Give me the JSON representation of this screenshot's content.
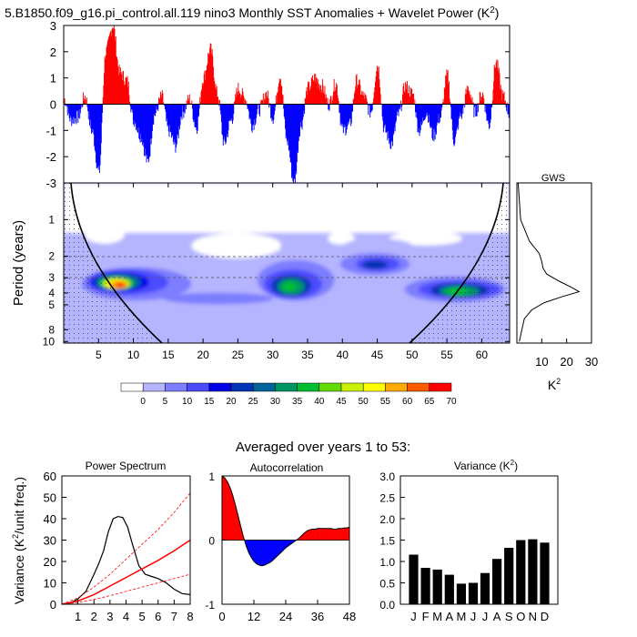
{
  "title_prefix": "5.B1850.f09_g16.pi_control.all.119 nino3 Monthly SST Anomalies + Wavelet Power (K",
  "title_sup": "2",
  "title_suffix": ")",
  "chart_data": [
    {
      "id": "anomaly",
      "type": "area",
      "xlim": [
        0,
        64
      ],
      "ylim": [
        -3,
        3
      ],
      "yticks": [
        "3",
        "2",
        "1",
        "0",
        "-1",
        "-2",
        "-3"
      ],
      "positive_color": "#ff0000",
      "negative_color": "#0000ff",
      "anchors_x": [
        0,
        1,
        2,
        3,
        4,
        5,
        6,
        7,
        8,
        9,
        10,
        11,
        12,
        13,
        14,
        15,
        16,
        17,
        18,
        19,
        20,
        21,
        22,
        23,
        24,
        25,
        26,
        27,
        28,
        29,
        30,
        31,
        32,
        33,
        34,
        35,
        36,
        37,
        38,
        39,
        40,
        41,
        42,
        43,
        44,
        45,
        46,
        47,
        48,
        49,
        50,
        51,
        52,
        53,
        54,
        55,
        56,
        57,
        58,
        59,
        60,
        61,
        62,
        63,
        64
      ],
      "anchors_y": [
        0.2,
        -0.6,
        -0.5,
        0.3,
        -1.0,
        -2.6,
        2.0,
        3.0,
        1.2,
        0.9,
        -0.6,
        -1.2,
        -2.2,
        -0.4,
        0.3,
        -1.0,
        -1.6,
        -0.3,
        0.2,
        -0.9,
        1.0,
        2.1,
        0.4,
        -1.5,
        -0.6,
        0.6,
        0.2,
        -0.8,
        -0.2,
        0.4,
        -0.5,
        1.1,
        -1.4,
        -3.0,
        -0.8,
        0.6,
        1.0,
        0.7,
        0.0,
        0.8,
        -1.0,
        -0.8,
        0.9,
        0.3,
        -0.3,
        1.5,
        -1.0,
        -1.5,
        -0.4,
        0.7,
        0.4,
        -1.0,
        -0.3,
        -1.2,
        -0.5,
        1.1,
        -1.4,
        -0.4,
        0.6,
        -0.3,
        0.4,
        -0.8,
        1.6,
        0.3,
        -0.4
      ]
    },
    {
      "id": "wavelet",
      "type": "heatmap",
      "ylabel": "Period (years)",
      "xticks": [
        "5",
        "10",
        "15",
        "20",
        "25",
        "30",
        "35",
        "40",
        "45",
        "50",
        "55",
        "60"
      ],
      "yticks": [
        "1",
        "2",
        "3",
        "4",
        "5",
        "8",
        "10"
      ],
      "colorbar_labels": [
        "0",
        "5",
        "10",
        "15",
        "20",
        "25",
        "30",
        "35",
        "40",
        "45",
        "50",
        "55",
        "60",
        "65",
        "70"
      ],
      "colorbar_colors": [
        "#ffffff",
        "#b4b4ff",
        "#7d7dff",
        "#4b4bff",
        "#0000e6",
        "#0032b4",
        "#00649b",
        "#009664",
        "#00be32",
        "#64dc00",
        "#c8f000",
        "#ffff00",
        "#ffaa00",
        "#ff5a00",
        "#ff0000"
      ],
      "notes": "colored wavelet power with cone of influence and stippled significance region"
    },
    {
      "id": "gws",
      "type": "line",
      "title": "GWS",
      "xlabel_base": "K",
      "xlabel_sup": "2",
      "xticks": [
        "10",
        "20",
        "30"
      ],
      "xlim": [
        0,
        30
      ],
      "curve": [
        {
          "period": 0.5,
          "power": 0.5
        },
        {
          "period": 1.0,
          "power": 1.5
        },
        {
          "period": 1.5,
          "power": 5
        },
        {
          "period": 1.9,
          "power": 9
        },
        {
          "period": 2.2,
          "power": 10
        },
        {
          "period": 2.5,
          "power": 10.5
        },
        {
          "period": 2.8,
          "power": 12
        },
        {
          "period": 3.2,
          "power": 17
        },
        {
          "period": 3.6,
          "power": 22
        },
        {
          "period": 3.9,
          "power": 25
        },
        {
          "period": 4.3,
          "power": 18
        },
        {
          "period": 4.8,
          "power": 11
        },
        {
          "period": 5.5,
          "power": 6
        },
        {
          "period": 6.5,
          "power": 3
        },
        {
          "period": 8.0,
          "power": 2
        },
        {
          "period": 10.0,
          "power": 1
        }
      ]
    },
    {
      "id": "power_spectrum",
      "type": "line",
      "title": "Power Spectrum",
      "ylabel_pre": "Variance (K",
      "ylabel_sup": "2",
      "ylabel_post": "/unit freq.)",
      "xlim": [
        0,
        8
      ],
      "ylim": [
        0,
        60
      ],
      "xticks": [
        "1",
        "2",
        "3",
        "4",
        "5",
        "6",
        "7",
        "8"
      ],
      "yticks": [
        "0",
        "10",
        "20",
        "30",
        "40",
        "50",
        "60"
      ],
      "series": [
        {
          "role": "spectrum",
          "color": "#000000",
          "x": [
            0,
            0.5,
            1.0,
            1.5,
            2.0,
            2.3,
            2.6,
            2.9,
            3.2,
            3.5,
            3.8,
            4.1,
            4.4,
            4.8,
            5.2,
            5.6,
            6.0,
            6.5,
            7.0,
            7.5,
            8.0
          ],
          "y": [
            0,
            0.5,
            2.5,
            6,
            14,
            19,
            25,
            34,
            40,
            41,
            40.5,
            36,
            28,
            18,
            14,
            13,
            12,
            10,
            7,
            5,
            4.5
          ]
        },
        {
          "role": "red-noise",
          "color": "#ff0000",
          "x": [
            0,
            1,
            2,
            3,
            4,
            5,
            6,
            7,
            8
          ],
          "y": [
            0,
            1.5,
            4.5,
            8.5,
            12.5,
            16.5,
            20.5,
            25,
            30
          ]
        },
        {
          "role": "upper-ci",
          "color": "#ff0000",
          "dashed": true,
          "x": [
            0,
            1,
            2,
            3,
            4,
            5,
            6,
            7,
            8
          ],
          "y": [
            0,
            3,
            8,
            14,
            21,
            28,
            35,
            43,
            52
          ]
        },
        {
          "role": "lower-ci",
          "color": "#ff0000",
          "dashed": true,
          "x": [
            0,
            1,
            2,
            3,
            4,
            5,
            6,
            7,
            8
          ],
          "y": [
            0,
            0.8,
            2.2,
            4,
            6,
            8,
            10,
            12,
            14
          ]
        }
      ]
    },
    {
      "id": "autocorrelation",
      "type": "area",
      "title": "Autocorrelation",
      "xlim": [
        0,
        48
      ],
      "ylim": [
        -1,
        1
      ],
      "xticks": [
        "0",
        "12",
        "24",
        "36",
        "48"
      ],
      "yticks": [
        "1",
        "0",
        "-1"
      ],
      "positive_color": "#ff0000",
      "negative_color": "#0000ff",
      "x": [
        0,
        1,
        2,
        3,
        4,
        5,
        6,
        7,
        8,
        9,
        10,
        11,
        12,
        13,
        14,
        15,
        16,
        17,
        18,
        19,
        20,
        21,
        22,
        23,
        24,
        25,
        26,
        27,
        28,
        29,
        30,
        31,
        32,
        33,
        34,
        35,
        36,
        37,
        38,
        39,
        40,
        41,
        42,
        43,
        44,
        45,
        46,
        47,
        48
      ],
      "y": [
        1.0,
        0.97,
        0.91,
        0.82,
        0.7,
        0.55,
        0.39,
        0.22,
        0.06,
        -0.08,
        -0.19,
        -0.27,
        -0.33,
        -0.37,
        -0.39,
        -0.4,
        -0.39,
        -0.37,
        -0.35,
        -0.32,
        -0.28,
        -0.24,
        -0.2,
        -0.16,
        -0.12,
        -0.09,
        -0.06,
        -0.03,
        0.0,
        0.03,
        0.07,
        0.11,
        0.14,
        0.16,
        0.17,
        0.17,
        0.18,
        0.18,
        0.18,
        0.18,
        0.18,
        0.18,
        0.17,
        0.17,
        0.18,
        0.18,
        0.19,
        0.19,
        0.2
      ]
    },
    {
      "id": "variance",
      "type": "bar",
      "title_pre": "Variance (K",
      "title_sup": "2",
      "title_post": ")",
      "categories": [
        "J",
        "F",
        "M",
        "A",
        "M",
        "J",
        "J",
        "A",
        "S",
        "O",
        "N",
        "D"
      ],
      "values": [
        1.16,
        0.85,
        0.81,
        0.69,
        0.48,
        0.5,
        0.73,
        1.06,
        1.32,
        1.5,
        1.52,
        1.44
      ],
      "ylim": [
        0,
        3
      ],
      "yticks": [
        "0.0",
        "0.5",
        "1.0",
        "1.5",
        "2.0",
        "2.5",
        "3.0"
      ],
      "bar_color": "#000000"
    }
  ],
  "averaged_label": "Averaged over years 1 to 53:"
}
